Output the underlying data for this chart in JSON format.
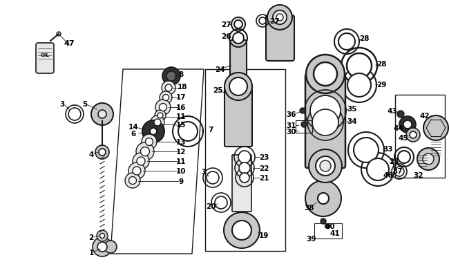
{
  "bg_color": "#ffffff",
  "lc": "#1a1a1a",
  "pc": "#c8c8c8",
  "pc2": "#e8e8e8",
  "dc": "#303030"
}
